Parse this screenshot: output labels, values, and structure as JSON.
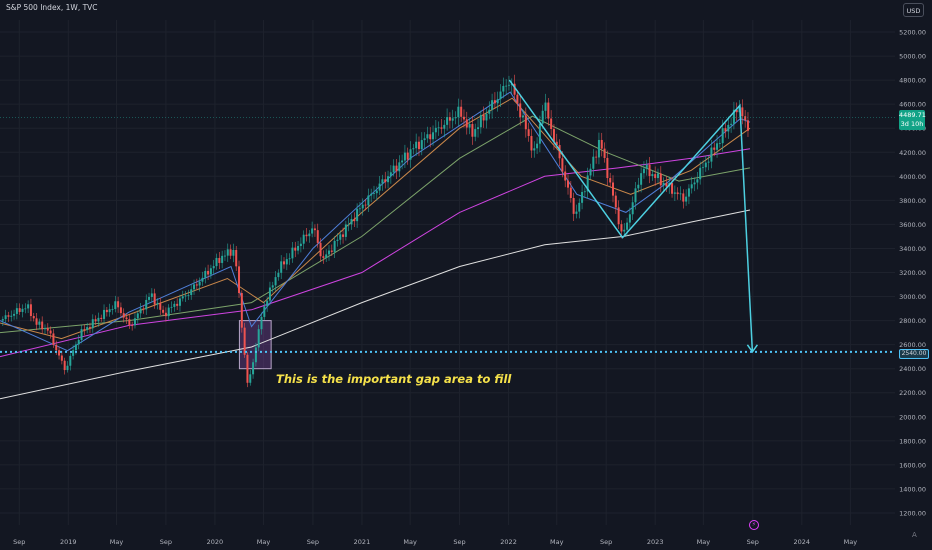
{
  "header": {
    "symbol_title": "S&P 500 Index, 1W, TVC",
    "currency_label": "USD"
  },
  "price_badge": {
    "price": "4489.71",
    "countdown": "3d 10h",
    "color": "#12a387"
  },
  "level_badge": {
    "label": "2540.00"
  },
  "annotation": {
    "text": "This is the important gap area to fill",
    "color": "#f5e14a"
  },
  "scale_mode_label": "A",
  "event_icon": "lightning-icon",
  "colors": {
    "background": "#131722",
    "grid": "#1e222d",
    "up_candle": "#26a69a",
    "down_candle": "#ef5350",
    "pattern_line": "#4dd0e1",
    "level_line": "#4fc3f7",
    "gap_box": "#6a3f8a"
  },
  "chart_data": {
    "type": "candlestick",
    "title": "S&P 500 Index, 1W, TVC",
    "ylim": [
      1100,
      5300
    ],
    "xlim": [
      "2018-07-15",
      "2024-08-20"
    ],
    "grid": true,
    "y_ticks": [
      {
        "value": 1200,
        "label": "1200.00"
      },
      {
        "value": 1400,
        "label": "1400.00"
      },
      {
        "value": 1600,
        "label": "1600.00"
      },
      {
        "value": 1800,
        "label": "1800.00"
      },
      {
        "value": 2000,
        "label": "2000.00"
      },
      {
        "value": 2200,
        "label": "2200.00"
      },
      {
        "value": 2400,
        "label": "2400.00"
      },
      {
        "value": 2600,
        "label": "2600.00"
      },
      {
        "value": 2800,
        "label": "2800.00"
      },
      {
        "value": 3000,
        "label": "3000.00"
      },
      {
        "value": 3200,
        "label": "3200.00"
      },
      {
        "value": 3400,
        "label": "3400.00"
      },
      {
        "value": 3600,
        "label": "3600.00"
      },
      {
        "value": 3800,
        "label": "3800.00"
      },
      {
        "value": 4000,
        "label": "4000.00"
      },
      {
        "value": 4200,
        "label": "4200.00"
      },
      {
        "value": 4400,
        "label": "4400.00"
      },
      {
        "value": 4600,
        "label": "4600.00"
      },
      {
        "value": 4800,
        "label": "4800.00"
      },
      {
        "value": 5000,
        "label": "5000.00"
      },
      {
        "value": 5200,
        "label": "5200.00"
      }
    ],
    "x_ticks": [
      {
        "date": "2018-09-01",
        "label": "Sep"
      },
      {
        "date": "2019-01-01",
        "label": "2019"
      },
      {
        "date": "2019-05-01",
        "label": "May"
      },
      {
        "date": "2019-09-01",
        "label": "Sep"
      },
      {
        "date": "2020-01-01",
        "label": "2020"
      },
      {
        "date": "2020-05-01",
        "label": "May"
      },
      {
        "date": "2020-09-01",
        "label": "Sep"
      },
      {
        "date": "2021-01-01",
        "label": "2021"
      },
      {
        "date": "2021-05-01",
        "label": "May"
      },
      {
        "date": "2021-09-01",
        "label": "Sep"
      },
      {
        "date": "2022-01-01",
        "label": "2022"
      },
      {
        "date": "2022-05-01",
        "label": "May"
      },
      {
        "date": "2022-09-01",
        "label": "Sep"
      },
      {
        "date": "2023-01-01",
        "label": "2023"
      },
      {
        "date": "2023-05-01",
        "label": "May"
      },
      {
        "date": "2023-09-01",
        "label": "Sep"
      },
      {
        "date": "2024-01-01",
        "label": "2024"
      },
      {
        "date": "2024-05-01",
        "label": "May"
      }
    ],
    "price_path": [
      [
        "2018-07-15",
        2800
      ],
      [
        "2018-09-20",
        2920
      ],
      [
        "2018-10-15",
        2770
      ],
      [
        "2018-11-10",
        2730
      ],
      [
        "2018-12-24",
        2390
      ],
      [
        "2019-02-01",
        2700
      ],
      [
        "2019-04-30",
        2940
      ],
      [
        "2019-06-03",
        2750
      ],
      [
        "2019-07-26",
        3020
      ],
      [
        "2019-08-25",
        2850
      ],
      [
        "2019-10-30",
        3040
      ],
      [
        "2020-01-17",
        3330
      ],
      [
        "2020-02-19",
        3390
      ],
      [
        "2020-03-23",
        2240
      ],
      [
        "2020-04-30",
        2900
      ],
      [
        "2020-06-08",
        3230
      ],
      [
        "2020-09-02",
        3580
      ],
      [
        "2020-09-25",
        3300
      ],
      [
        "2020-12-31",
        3750
      ],
      [
        "2021-02-15",
        3930
      ],
      [
        "2021-05-07",
        4230
      ],
      [
        "2021-09-02",
        4540
      ],
      [
        "2021-10-01",
        4350
      ],
      [
        "2022-01-03",
        4800
      ],
      [
        "2022-03-08",
        4170
      ],
      [
        "2022-03-29",
        4630
      ],
      [
        "2022-06-16",
        3670
      ],
      [
        "2022-08-16",
        4300
      ],
      [
        "2022-10-12",
        3490
      ],
      [
        "2022-12-01",
        4080
      ],
      [
        "2023-03-13",
        3810
      ],
      [
        "2023-07-31",
        4590
      ],
      [
        "2023-08-18",
        4370
      ],
      [
        "2023-08-25",
        4406
      ]
    ],
    "current_price": 4489.71,
    "moving_averages": [
      {
        "color": "#e0e0e0",
        "points": [
          [
            "2018-07-15",
            2150
          ],
          [
            "2019-06-01",
            2380
          ],
          [
            "2020-04-01",
            2580
          ],
          [
            "2021-01-01",
            2950
          ],
          [
            "2021-09-01",
            3250
          ],
          [
            "2022-04-01",
            3430
          ],
          [
            "2022-10-15",
            3500
          ],
          [
            "2023-04-01",
            3620
          ],
          [
            "2023-08-25",
            3720
          ]
        ]
      },
      {
        "color": "#ce44e0",
        "points": [
          [
            "2018-07-15",
            2500
          ],
          [
            "2019-06-01",
            2760
          ],
          [
            "2020-04-01",
            2890
          ],
          [
            "2021-01-01",
            3200
          ],
          [
            "2021-09-01",
            3700
          ],
          [
            "2022-04-01",
            4000
          ],
          [
            "2022-10-01",
            4070
          ],
          [
            "2023-04-01",
            4150
          ],
          [
            "2023-08-25",
            4230
          ]
        ]
      },
      {
        "color": "#7ca36a",
        "points": [
          [
            "2018-07-15",
            2700
          ],
          [
            "2019-06-01",
            2800
          ],
          [
            "2020-04-01",
            2950
          ],
          [
            "2021-01-01",
            3500
          ],
          [
            "2021-09-01",
            4150
          ],
          [
            "2022-03-01",
            4500
          ],
          [
            "2022-09-01",
            4200
          ],
          [
            "2023-03-01",
            3960
          ],
          [
            "2023-08-25",
            4070
          ]
        ]
      },
      {
        "color": "#c9874a",
        "points": [
          [
            "2018-07-15",
            2780
          ],
          [
            "2018-12-15",
            2650
          ],
          [
            "2019-06-01",
            2850
          ],
          [
            "2020-02-01",
            3150
          ],
          [
            "2020-05-01",
            2950
          ],
          [
            "2021-01-01",
            3700
          ],
          [
            "2021-09-01",
            4400
          ],
          [
            "2022-01-10",
            4650
          ],
          [
            "2022-07-01",
            4000
          ],
          [
            "2022-11-01",
            3850
          ],
          [
            "2023-04-01",
            4050
          ],
          [
            "2023-08-25",
            4400
          ]
        ]
      },
      {
        "color": "#4f7fd9",
        "points": [
          [
            "2018-07-15",
            2800
          ],
          [
            "2018-12-30",
            2550
          ],
          [
            "2019-06-01",
            2870
          ],
          [
            "2020-02-10",
            3250
          ],
          [
            "2020-04-01",
            2750
          ],
          [
            "2020-09-01",
            3400
          ],
          [
            "2021-05-01",
            4150
          ],
          [
            "2022-01-05",
            4700
          ],
          [
            "2022-06-20",
            3850
          ],
          [
            "2022-10-20",
            3700
          ],
          [
            "2023-02-01",
            3950
          ],
          [
            "2023-08-01",
            4480
          ],
          [
            "2023-08-25",
            4450
          ]
        ]
      }
    ],
    "pattern_line": {
      "color": "#4dd0e1",
      "points": [
        [
          "2022-01-03",
          4800
        ],
        [
          "2022-10-12",
          3490
        ],
        [
          "2023-07-31",
          4590
        ],
        [
          "2023-08-31",
          2540
        ]
      ]
    },
    "horizontal_level": {
      "value": 2540,
      "label": "2540.00",
      "color": "#4fc3f7"
    },
    "gap_box": {
      "x0": "2020-03-02",
      "x1": "2020-05-20",
      "y0": 2400,
      "y1": 2800,
      "color": "#6a3f8a"
    },
    "annotations": [
      {
        "text": "This is the important gap area to fill"
      }
    ]
  }
}
